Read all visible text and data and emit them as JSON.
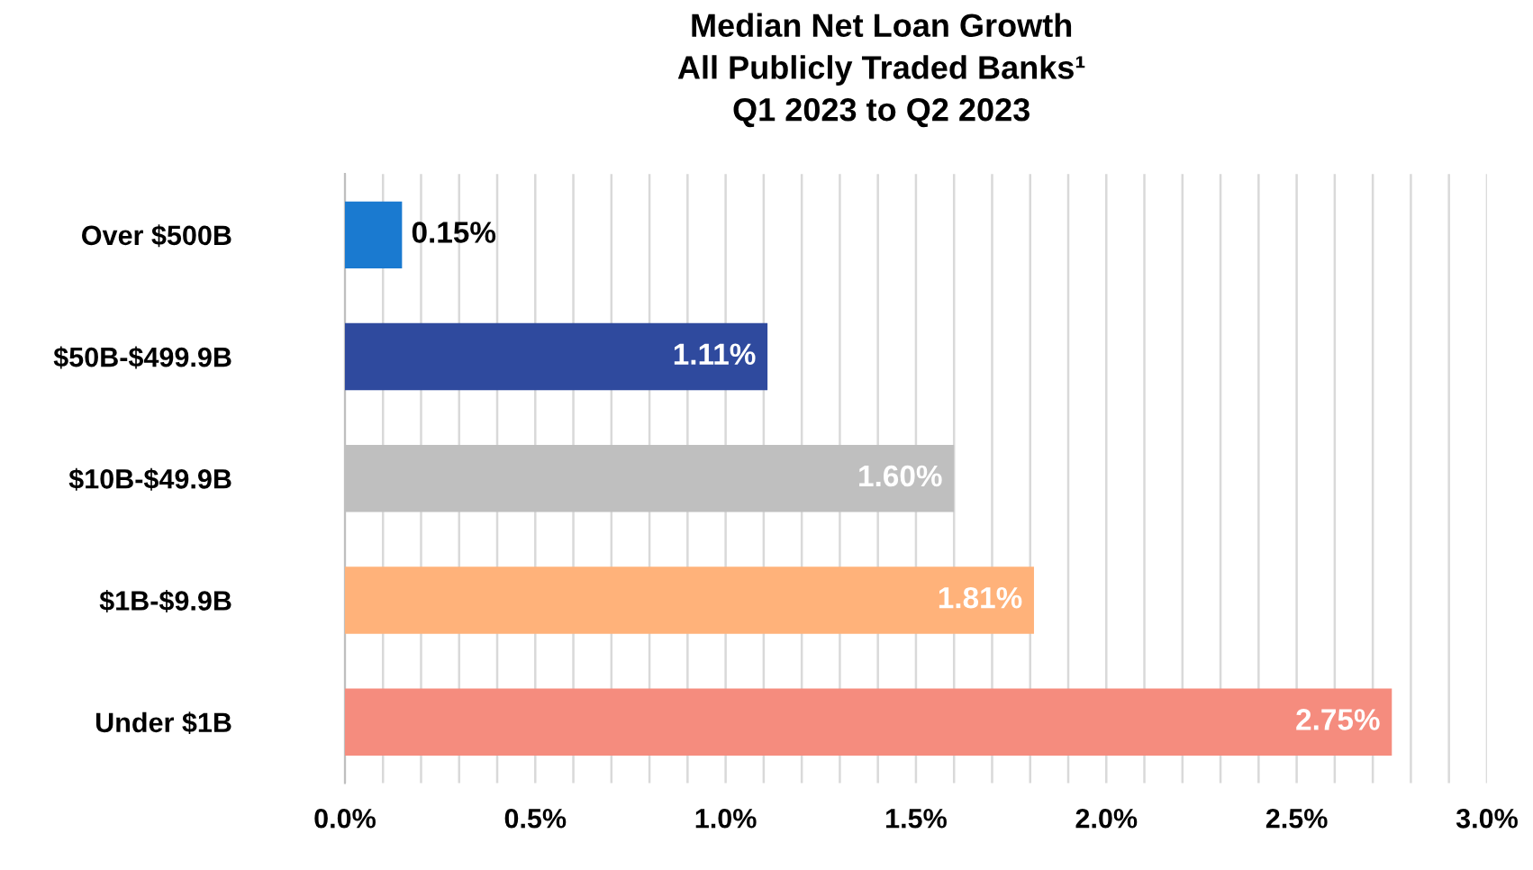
{
  "chart_data": {
    "type": "bar",
    "orientation": "horizontal",
    "title": "Median Net Loan Growth\nAll Publicly Traded Banks¹\nQ1 2023 to Q2 2023",
    "categories": [
      "Over $500B",
      "$50B-$499.9B",
      "$10B-$49.9B",
      "$1B-$9.9B",
      "Under $1B"
    ],
    "values": [
      0.15,
      1.11,
      1.6,
      1.81,
      2.75
    ],
    "colors": [
      "#1a7ad0",
      "#2f4a9e",
      "#bfbfbf",
      "#ffb27a",
      "#f58c7e"
    ],
    "value_labels": [
      "0.15%",
      "1.11%",
      "1.60%",
      "1.81%",
      "2.75%"
    ],
    "xlim": [
      0,
      3.0
    ],
    "xticks": [
      {
        "value": 0,
        "label": "0.0%"
      },
      {
        "value": 0.1,
        "label": null
      },
      {
        "value": 0.2,
        "label": null
      },
      {
        "value": 0.3,
        "label": null
      },
      {
        "value": 0.4,
        "label": null
      },
      {
        "value": 0.5,
        "label": "0.5%"
      },
      {
        "value": 0.6,
        "label": null
      },
      {
        "value": 0.7,
        "label": null
      },
      {
        "value": 0.8,
        "label": null
      },
      {
        "value": 0.9,
        "label": null
      },
      {
        "value": 1.0,
        "label": "1.0%"
      },
      {
        "value": 1.1,
        "label": null
      },
      {
        "value": 1.2,
        "label": null
      },
      {
        "value": 1.3,
        "label": null
      },
      {
        "value": 1.4,
        "label": null
      },
      {
        "value": 1.5,
        "label": "1.5%"
      },
      {
        "value": 1.6,
        "label": null
      },
      {
        "value": 1.7,
        "label": null
      },
      {
        "value": 1.8,
        "label": null
      },
      {
        "value": 1.9,
        "label": null
      },
      {
        "value": 2.0,
        "label": "2.0%"
      },
      {
        "value": 2.1,
        "label": null
      },
      {
        "value": 2.2,
        "label": null
      },
      {
        "value": 2.3,
        "label": null
      },
      {
        "value": 2.4,
        "label": null
      },
      {
        "value": 2.5,
        "label": "2.5%"
      },
      {
        "value": 2.6,
        "label": null
      },
      {
        "value": 2.7,
        "label": null
      },
      {
        "value": 2.8,
        "label": null
      },
      {
        "value": 2.9,
        "label": null
      },
      {
        "value": 3.0,
        "label": "3.0%"
      }
    ],
    "grid": "x",
    "legend": false
  }
}
